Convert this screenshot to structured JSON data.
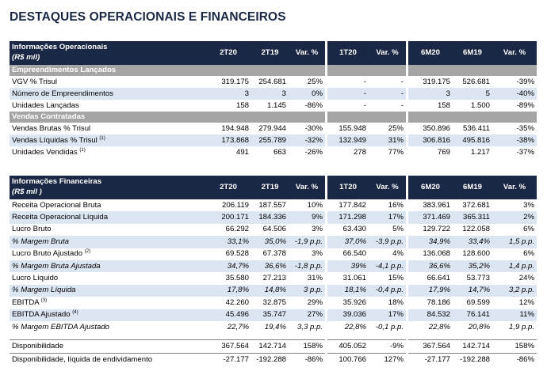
{
  "title": "DESTAQUES OPERACIONAIS E FINANCEIROS",
  "columns": [
    "2T20",
    "2T19",
    "Var. %",
    "1T20",
    "Var. %",
    "6M20",
    "6M19",
    "Var. %"
  ],
  "operational": {
    "header": {
      "line1": "Informações Operacionais",
      "line2": "(R$ mil)"
    },
    "sections": [
      {
        "title": "Empreendimentos Lançados",
        "rows": [
          {
            "label": "VGV % Trisul",
            "sup": "",
            "values": [
              "319.175",
              "254.681",
              "25%",
              "-",
              "-",
              "319.175",
              "526.681",
              "-39%"
            ]
          },
          {
            "label": "Número de Empreendimentos",
            "sup": "",
            "values": [
              "3",
              "3",
              "0%",
              "-",
              "-",
              "3",
              "5",
              "-40%"
            ]
          },
          {
            "label": "Unidades Lançadas",
            "sup": "",
            "values": [
              "158",
              "1.145",
              "-86%",
              "-",
              "-",
              "158",
              "1.500",
              "-89%"
            ]
          }
        ]
      },
      {
        "title": "Vendas Contratadas",
        "rows": [
          {
            "label": "Vendas Brutas % Trisul",
            "sup": "",
            "values": [
              "194.948",
              "279.944",
              "-30%",
              "155.948",
              "25%",
              "350.896",
              "536.411",
              "-35%"
            ]
          },
          {
            "label": "Vendas Líquidas % Trisul",
            "sup": "(1)",
            "values": [
              "173.868",
              "255.789",
              "-32%",
              "132.949",
              "31%",
              "306.816",
              "495.816",
              "-38%"
            ]
          },
          {
            "label": "Unidades Vendidas",
            "sup": "(1)",
            "values": [
              "491",
              "663",
              "-26%",
              "278",
              "77%",
              "769",
              "1.217",
              "-37%"
            ]
          }
        ]
      }
    ]
  },
  "financial": {
    "header": {
      "line1": "Informações Financeiras",
      "line2": "(R$ mil )"
    },
    "rows": [
      {
        "label": "Receita Operacional Bruta",
        "sup": "",
        "values": [
          "206.119",
          "187.557",
          "10%",
          "177.842",
          "16%",
          "383.961",
          "372.681",
          "3%"
        ]
      },
      {
        "label": "Receita Operacional Líquida",
        "sup": "",
        "values": [
          "200.171",
          "184.336",
          "9%",
          "171.298",
          "17%",
          "371.469",
          "365.311",
          "2%"
        ]
      },
      {
        "label": "Lucro Bruto",
        "sup": "",
        "values": [
          "66.292",
          "64.506",
          "3%",
          "63.430",
          "5%",
          "129.722",
          "122.058",
          "6%"
        ]
      },
      {
        "label": "% Margem Bruta",
        "sup": "",
        "values": [
          "33,1%",
          "35,0%",
          "-1,9 p.p.",
          "37,0%",
          "-3,9 p.p.",
          "34,9%",
          "33,4%",
          "1,5 p.p."
        ]
      },
      {
        "label": "Lucro Bruto Ajustado",
        "sup": "(2)",
        "values": [
          "69.528",
          "67.378",
          "3%",
          "66.540",
          "4%",
          "136.068",
          "128.600",
          "6%"
        ]
      },
      {
        "label": "% Margem Bruta Ajustada",
        "sup": "",
        "values": [
          "34,7%",
          "36,6%",
          "-1,8 p.p.",
          "39%",
          "-4,1 p.p.",
          "36,6%",
          "35,2%",
          "1,4 p.p."
        ]
      },
      {
        "label": "Lucro Líquido",
        "sup": "",
        "values": [
          "35.580",
          "27.213",
          "31%",
          "31.061",
          "15%",
          "66.641",
          "53.773",
          "24%"
        ]
      },
      {
        "label": "% Margem Líquida",
        "sup": "",
        "values": [
          "17,8%",
          "14,8%",
          "3 p.p.",
          "18,1%",
          "-0,4 p.p.",
          "17,9%",
          "14,7%",
          "3,2 p.p."
        ]
      },
      {
        "label": "EBITDA",
        "sup": "(3)",
        "values": [
          "42.260",
          "32.875",
          "29%",
          "35.926",
          "18%",
          "78.186",
          "69.599",
          "12%"
        ]
      },
      {
        "label": "EBITDA Ajustado",
        "sup": "(4)",
        "values": [
          "45.496",
          "35.747",
          "27%",
          "39.036",
          "17%",
          "84.532",
          "76.141",
          "11%"
        ]
      },
      {
        "label": "% Margem EBITDA Ajustado",
        "sup": "",
        "values": [
          "22,7%",
          "19,4%",
          "3,3 p.p.",
          "22,8%",
          "-0,1 p.p.",
          "22,8%",
          "20,8%",
          "1,9 p.p."
        ]
      }
    ]
  },
  "cash": {
    "rows": [
      {
        "label": "Disponibilidade",
        "values": [
          "367.564",
          "142.714",
          "158%",
          "405.052",
          "-9%",
          "367.564",
          "142.714",
          "158%"
        ]
      },
      {
        "label": "Disponibilidade, líquida de endividamento",
        "values": [
          "-27.177",
          "-192.288",
          "-86%",
          "100.766",
          "127%",
          "-27.177",
          "-192.288",
          "-86%"
        ]
      }
    ]
  }
}
